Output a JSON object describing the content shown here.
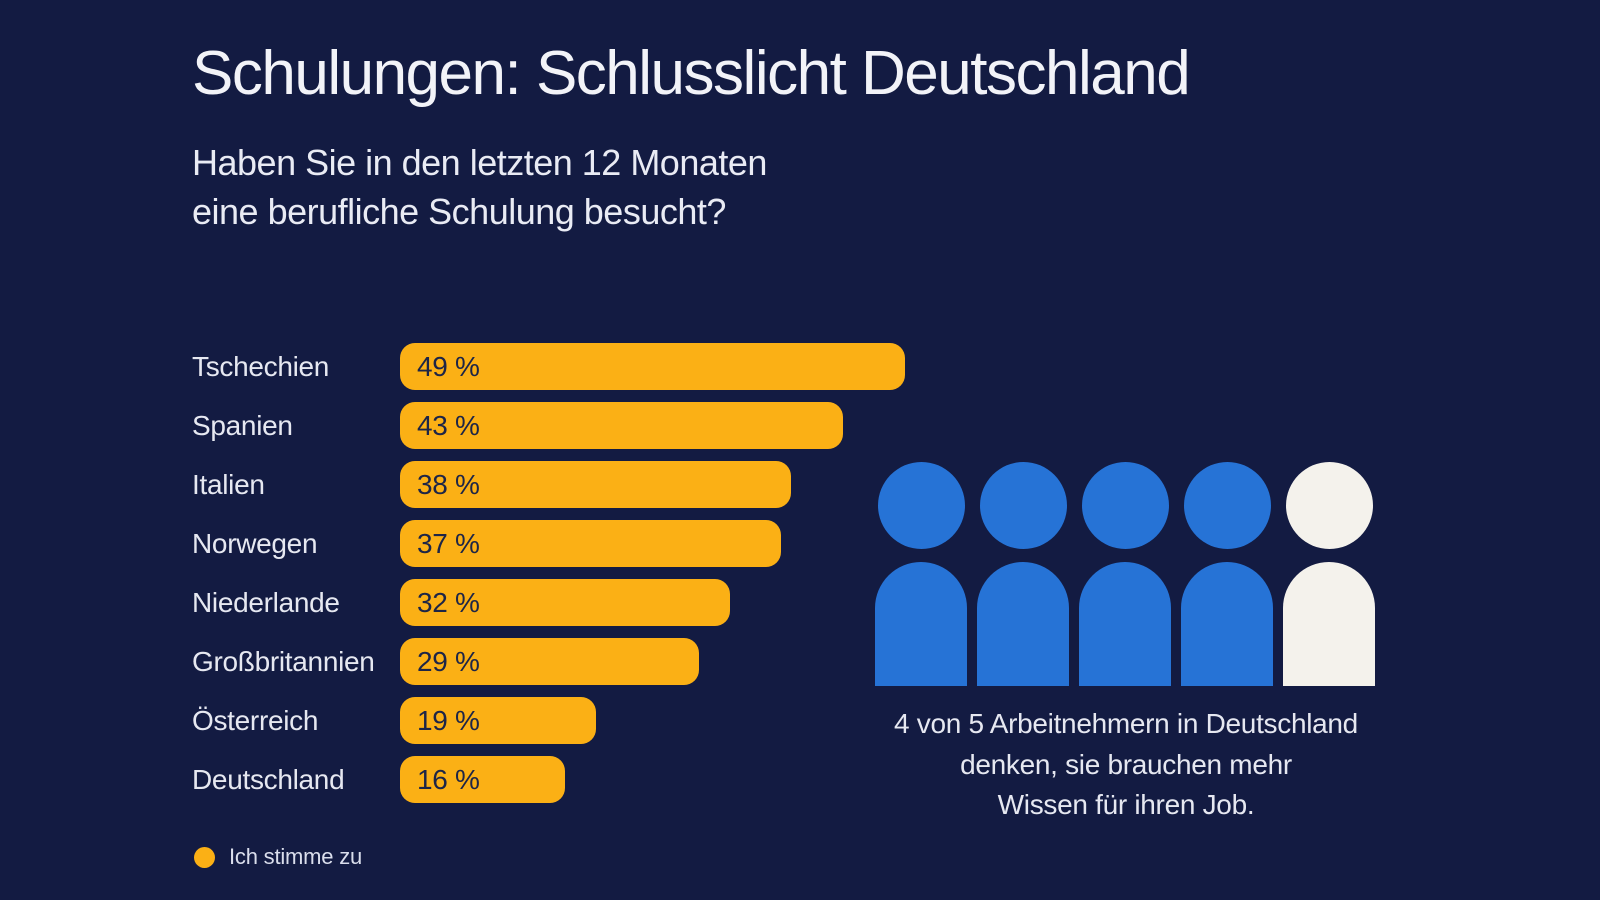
{
  "page": {
    "background_color": "#131B42"
  },
  "header": {
    "title": "Schulungen: Schlusslicht Deutschland",
    "subtitle_line1": "Haben Sie in den letzten 12 Monaten",
    "subtitle_line2": "eine berufliche Schulung besucht?"
  },
  "chart_data": {
    "type": "bar",
    "orientation": "horizontal",
    "categories": [
      "Tschechien",
      "Spanien",
      "Italien",
      "Norwegen",
      "Niederlande",
      "Großbritannien",
      "Österreich",
      "Deutschland"
    ],
    "values": [
      49,
      43,
      38,
      37,
      32,
      29,
      19,
      16
    ],
    "value_labels": [
      "49 %",
      "43 %",
      "38 %",
      "37 %",
      "32 %",
      "29 %",
      "19 %",
      "16 %"
    ],
    "title": "Schulungen: Schlusslicht Deutschland",
    "xlabel": "",
    "ylabel": "",
    "xlim": [
      0,
      50
    ],
    "grid": false,
    "bar_color": "#FBB015",
    "value_text_color": "#1D2547",
    "label_color": "#E6E8F1",
    "legend": {
      "label": "Ich stimme zu",
      "marker_color": "#FBB015",
      "position": "bottom-left"
    }
  },
  "pictogram": {
    "total": 5,
    "highlighted": 4,
    "highlight_color": "#2673D6",
    "muted_color": "#F4F2EC",
    "caption_line1": "4 von 5 Arbeitnehmern in Deutschland",
    "caption_line2": "denken, sie brauchen mehr",
    "caption_line3": "Wissen für ihren Job."
  }
}
